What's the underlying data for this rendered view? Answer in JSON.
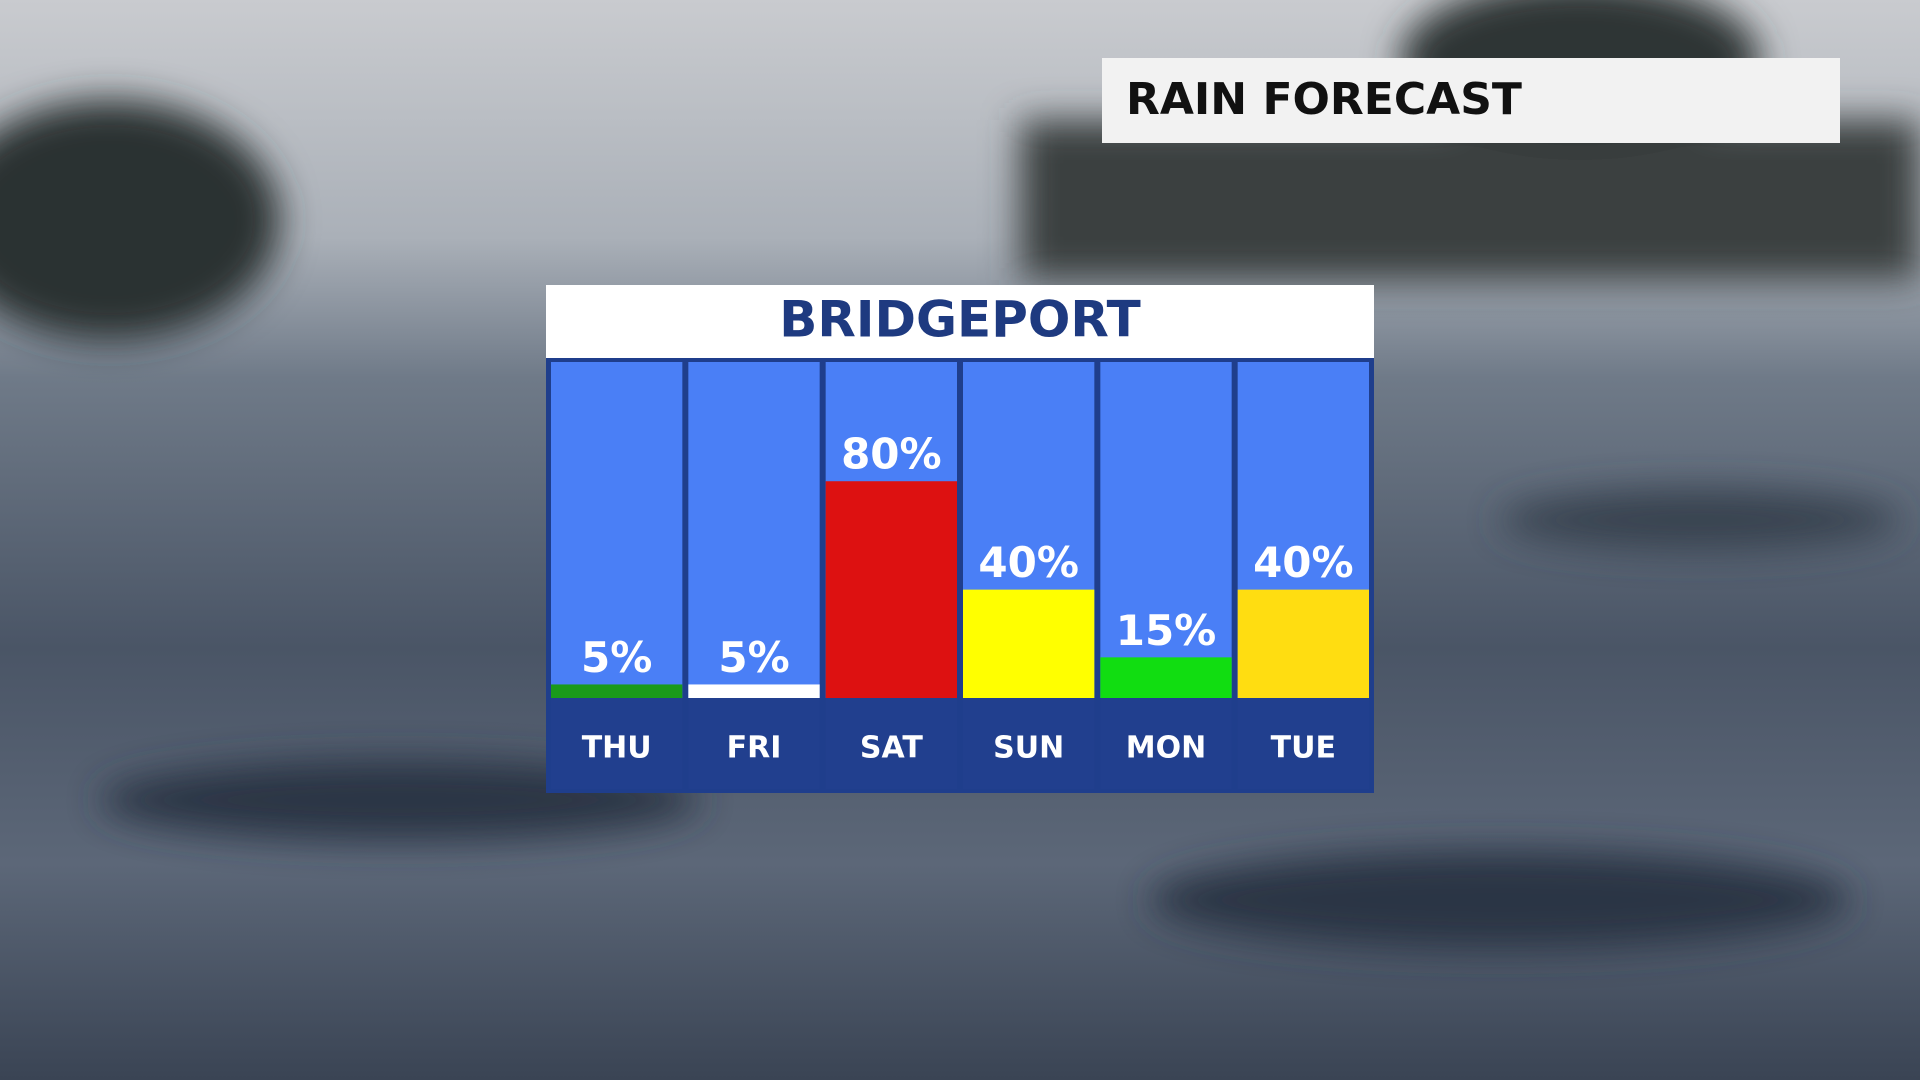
{
  "chart_data": {
    "type": "bar",
    "title": "RAIN FORECAST",
    "subtitle": "BRIDGEPORT",
    "categories": [
      "THU",
      "FRI",
      "SAT",
      "SUN",
      "MON",
      "TUE"
    ],
    "values": [
      5,
      5,
      80,
      40,
      15,
      40
    ],
    "value_labels": [
      "5%",
      "5%",
      "80%",
      "40%",
      "15%",
      "40%"
    ],
    "colors": [
      "#1a9a1a",
      "#ffffff",
      "#dd1111",
      "#ffff00",
      "#11dd11",
      "#ffdd11"
    ],
    "ylim": [
      0,
      124
    ],
    "grid": false
  }
}
